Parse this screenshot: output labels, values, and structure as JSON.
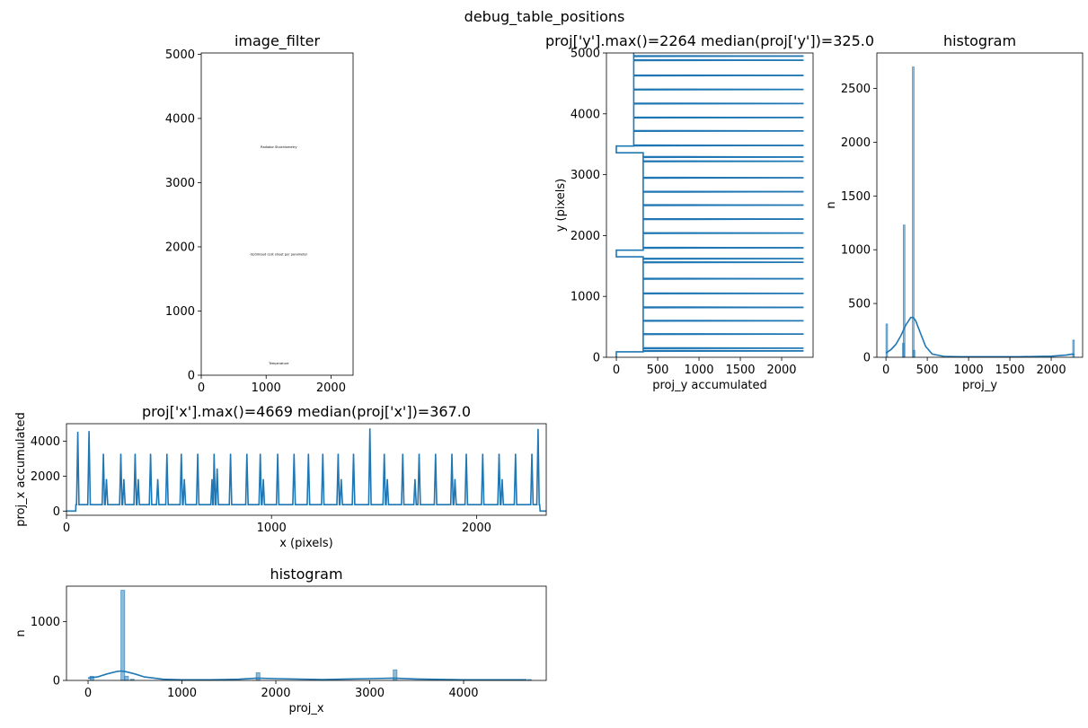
{
  "figure": {
    "suptitle": "debug_table_positions"
  },
  "chart_data": [
    {
      "type": "image",
      "id": "image_filter",
      "title": "image_filter",
      "xticks": [
        "0",
        "1000",
        "2000"
      ],
      "xtick_values": [
        0,
        1000,
        2000
      ],
      "yticks": [
        "0",
        "1000",
        "2000",
        "3000",
        "4000",
        "5000"
      ],
      "ytick_values": [
        0,
        1000,
        2000,
        3000,
        4000,
        5000
      ],
      "xlim": [
        0,
        2340
      ],
      "ylim": [
        5020,
        0
      ],
      "fill_color": "#ff0000",
      "blocks": [
        {
          "header": "Temperature",
          "y0": 110,
          "y1": 1680
        },
        {
          "header": "Optimised cost sheet per parameter",
          "y0": 1810,
          "y1": 3320
        },
        {
          "header": "Radiator Stoichiometry",
          "y0": 3480,
          "y1": 4970
        }
      ]
    },
    {
      "type": "line",
      "id": "proj_y",
      "title": "proj['y'].max()=2264 median(proj['y'])=325.0",
      "xlabel": "proj_y accumulated",
      "ylabel": "y (pixels)",
      "xticks": [
        "0",
        "500",
        "1000",
        "1500",
        "2000"
      ],
      "xtick_values": [
        0,
        500,
        1000,
        1500,
        2000
      ],
      "yticks": [
        "0",
        "1000",
        "2000",
        "3000",
        "4000",
        "5000"
      ],
      "ytick_values": [
        0,
        1000,
        2000,
        3000,
        4000,
        5000
      ],
      "xlim": [
        -120,
        2380
      ],
      "ylim": [
        5000,
        0
      ],
      "color": "#1f77b4",
      "segments": [
        {
          "from": 0,
          "to": 90,
          "base": 0
        },
        {
          "from": 90,
          "to": 1650,
          "base": 325
        },
        {
          "from": 1650,
          "to": 1760,
          "base": 0
        },
        {
          "from": 1760,
          "to": 3360,
          "base": 325
        },
        {
          "from": 3360,
          "to": 3470,
          "base": 0
        },
        {
          "from": 3470,
          "to": 5000,
          "base": 210
        }
      ],
      "spikes": [
        {
          "y": 105,
          "value": 2264
        },
        {
          "y": 150,
          "value": 2264
        },
        {
          "y": 380,
          "value": 2264
        },
        {
          "y": 600,
          "value": 2264
        },
        {
          "y": 820,
          "value": 2264
        },
        {
          "y": 1050,
          "value": 2264
        },
        {
          "y": 1290,
          "value": 2264
        },
        {
          "y": 1560,
          "value": 2264
        },
        {
          "y": 1620,
          "value": 2264
        },
        {
          "y": 1800,
          "value": 2264
        },
        {
          "y": 2040,
          "value": 2264
        },
        {
          "y": 2270,
          "value": 2264
        },
        {
          "y": 2500,
          "value": 2264
        },
        {
          "y": 2720,
          "value": 2264
        },
        {
          "y": 2950,
          "value": 2264
        },
        {
          "y": 3220,
          "value": 2264
        },
        {
          "y": 3290,
          "value": 2264
        },
        {
          "y": 3480,
          "value": 2264
        },
        {
          "y": 3720,
          "value": 2264
        },
        {
          "y": 3940,
          "value": 2264
        },
        {
          "y": 4170,
          "value": 2264
        },
        {
          "y": 4400,
          "value": 2264
        },
        {
          "y": 4630,
          "value": 2264
        },
        {
          "y": 4880,
          "value": 2264
        },
        {
          "y": 4950,
          "value": 2264
        }
      ]
    },
    {
      "type": "bar",
      "id": "hist_proj_y",
      "title": "histogram",
      "xlabel": "proj_y",
      "ylabel": "n",
      "xticks": [
        "0",
        "500",
        "1000",
        "1500",
        "2000"
      ],
      "xtick_values": [
        0,
        500,
        1000,
        1500,
        2000
      ],
      "yticks": [
        "0",
        "500",
        "1000",
        "1500",
        "2000",
        "2500"
      ],
      "ytick_values": [
        0,
        500,
        1000,
        1500,
        2000,
        2500
      ],
      "xlim": [
        -110,
        2380
      ],
      "ylim": [
        0,
        2830
      ],
      "bin_width": 20,
      "color": "#1f77b4",
      "bins": [
        {
          "x": 0,
          "n": 310
        },
        {
          "x": 200,
          "n": 130
        },
        {
          "x": 210,
          "n": 1230
        },
        {
          "x": 320,
          "n": 2700
        },
        {
          "x": 330,
          "n": 65
        },
        {
          "x": 2260,
          "n": 160
        }
      ],
      "kde": {
        "x": [
          0,
          60,
          120,
          180,
          240,
          300,
          330,
          360,
          420,
          480,
          560,
          700,
          900,
          1200,
          1600,
          2000,
          2180,
          2260,
          2280
        ],
        "y": [
          40,
          70,
          120,
          200,
          300,
          370,
          370,
          340,
          220,
          100,
          30,
          8,
          5,
          5,
          5,
          10,
          20,
          30,
          20
        ]
      }
    },
    {
      "type": "line",
      "id": "proj_x",
      "title": "proj['x'].max()=4669 median(proj['x'])=367.0",
      "xlabel": "x (pixels)",
      "ylabel": "proj_x accumulated",
      "xticks": [
        "0",
        "1000",
        "2000"
      ],
      "xtick_values": [
        0,
        1000,
        2000
      ],
      "yticks": [
        "0",
        "2000",
        "4000"
      ],
      "ytick_values": [
        0,
        2000,
        4000
      ],
      "xlim": [
        0,
        2340
      ],
      "ylim": [
        -240,
        5000
      ],
      "baseline": 367,
      "color": "#1f77b4",
      "peaks": [
        {
          "x": 55,
          "value": 4500
        },
        {
          "x": 110,
          "value": 4550
        },
        {
          "x": 180,
          "value": 3250
        },
        {
          "x": 195,
          "value": 1800
        },
        {
          "x": 265,
          "value": 3250
        },
        {
          "x": 280,
          "value": 1800
        },
        {
          "x": 335,
          "value": 3250
        },
        {
          "x": 350,
          "value": 1800
        },
        {
          "x": 410,
          "value": 3250
        },
        {
          "x": 445,
          "value": 1800
        },
        {
          "x": 490,
          "value": 3250
        },
        {
          "x": 560,
          "value": 3250
        },
        {
          "x": 575,
          "value": 1800
        },
        {
          "x": 640,
          "value": 3250
        },
        {
          "x": 710,
          "value": 1800
        },
        {
          "x": 720,
          "value": 3250
        },
        {
          "x": 735,
          "value": 2400
        },
        {
          "x": 800,
          "value": 3250
        },
        {
          "x": 880,
          "value": 3250
        },
        {
          "x": 945,
          "value": 3250
        },
        {
          "x": 960,
          "value": 1800
        },
        {
          "x": 1030,
          "value": 3250
        },
        {
          "x": 1110,
          "value": 3250
        },
        {
          "x": 1180,
          "value": 3250
        },
        {
          "x": 1250,
          "value": 3250
        },
        {
          "x": 1325,
          "value": 3250
        },
        {
          "x": 1340,
          "value": 1800
        },
        {
          "x": 1400,
          "value": 3250
        },
        {
          "x": 1480,
          "value": 4700
        },
        {
          "x": 1550,
          "value": 3250
        },
        {
          "x": 1565,
          "value": 1800
        },
        {
          "x": 1640,
          "value": 3250
        },
        {
          "x": 1700,
          "value": 1800
        },
        {
          "x": 1720,
          "value": 3250
        },
        {
          "x": 1800,
          "value": 3250
        },
        {
          "x": 1880,
          "value": 3250
        },
        {
          "x": 1895,
          "value": 1800
        },
        {
          "x": 1950,
          "value": 3250
        },
        {
          "x": 2030,
          "value": 3250
        },
        {
          "x": 2110,
          "value": 3250
        },
        {
          "x": 2125,
          "value": 1800
        },
        {
          "x": 2190,
          "value": 3250
        },
        {
          "x": 2270,
          "value": 3250
        },
        {
          "x": 2300,
          "value": 4669
        }
      ],
      "edges": [
        {
          "from": 0,
          "to": 45,
          "value": 0
        },
        {
          "from": 2310,
          "to": 2340,
          "value": 0
        }
      ]
    },
    {
      "type": "bar",
      "id": "hist_proj_x",
      "title": "histogram",
      "xlabel": "proj_x",
      "ylabel": "n",
      "xticks": [
        "0",
        "1000",
        "2000",
        "3000",
        "4000"
      ],
      "xtick_values": [
        0,
        1000,
        2000,
        3000,
        4000
      ],
      "yticks": [
        "0",
        "1000"
      ],
      "ytick_values": [
        0,
        1000
      ],
      "xlim": [
        -230,
        4880
      ],
      "ylim": [
        0,
        1600
      ],
      "bin_width": 40,
      "color": "#1f77b4",
      "bins": [
        {
          "x": 20,
          "n": 70
        },
        {
          "x": 350,
          "n": 1530
        },
        {
          "x": 390,
          "n": 70
        },
        {
          "x": 450,
          "n": 20
        },
        {
          "x": 1790,
          "n": 130
        },
        {
          "x": 3250,
          "n": 180
        },
        {
          "x": 4680,
          "n": 15
        }
      ],
      "kde": {
        "x": [
          0,
          100,
          200,
          300,
          350,
          400,
          500,
          600,
          800,
          1000,
          1300,
          1600,
          1800,
          2000,
          2500,
          3000,
          3250,
          3500,
          4000,
          4669
        ],
        "y": [
          40,
          60,
          110,
          150,
          160,
          150,
          110,
          60,
          20,
          10,
          10,
          20,
          40,
          30,
          15,
          30,
          40,
          25,
          10,
          10
        ]
      }
    }
  ]
}
